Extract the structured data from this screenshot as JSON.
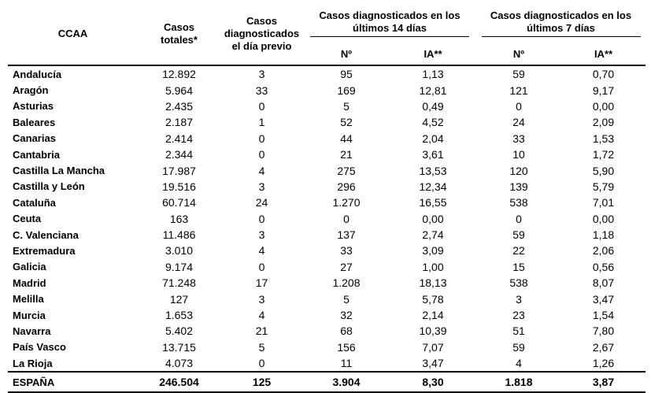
{
  "headers": {
    "ccaa": "CCAA",
    "casos_totales": "Casos totales*",
    "casos_dia_previo": "Casos diagnosticados el día previo",
    "ultimos_14": "Casos diagnosticados en los últimos 14 días",
    "ultimos_7": "Casos diagnosticados en los últimos 7 días",
    "n": "Nº",
    "ia": "IA**"
  },
  "rows": [
    {
      "ccaa": "Andalucía",
      "total": "12.892",
      "previo": "3",
      "n14": "95",
      "ia14": "1,13",
      "n7": "59",
      "ia7": "0,70"
    },
    {
      "ccaa": "Aragón",
      "total": "5.964",
      "previo": "33",
      "n14": "169",
      "ia14": "12,81",
      "n7": "121",
      "ia7": "9,17"
    },
    {
      "ccaa": "Asturias",
      "total": "2.435",
      "previo": "0",
      "n14": "5",
      "ia14": "0,49",
      "n7": "0",
      "ia7": "0,00"
    },
    {
      "ccaa": "Baleares",
      "total": "2.187",
      "previo": "1",
      "n14": "52",
      "ia14": "4,52",
      "n7": "24",
      "ia7": "2,09"
    },
    {
      "ccaa": "Canarias",
      "total": "2.414",
      "previo": "0",
      "n14": "44",
      "ia14": "2,04",
      "n7": "33",
      "ia7": "1,53"
    },
    {
      "ccaa": "Cantabria",
      "total": "2.344",
      "previo": "0",
      "n14": "21",
      "ia14": "3,61",
      "n7": "10",
      "ia7": "1,72"
    },
    {
      "ccaa": "Castilla La Mancha",
      "total": "17.987",
      "previo": "4",
      "n14": "275",
      "ia14": "13,53",
      "n7": "120",
      "ia7": "5,90"
    },
    {
      "ccaa": "Castilla y León",
      "total": "19.516",
      "previo": "3",
      "n14": "296",
      "ia14": "12,34",
      "n7": "139",
      "ia7": "5,79"
    },
    {
      "ccaa": "Cataluña",
      "total": "60.714",
      "previo": "24",
      "n14": "1.270",
      "ia14": "16,55",
      "n7": "538",
      "ia7": "7,01"
    },
    {
      "ccaa": "Ceuta",
      "total": "163",
      "previo": "0",
      "n14": "0",
      "ia14": "0,00",
      "n7": "0",
      "ia7": "0,00"
    },
    {
      "ccaa": "C. Valenciana",
      "total": "11.486",
      "previo": "3",
      "n14": "137",
      "ia14": "2,74",
      "n7": "59",
      "ia7": "1,18"
    },
    {
      "ccaa": "Extremadura",
      "total": "3.010",
      "previo": "4",
      "n14": "33",
      "ia14": "3,09",
      "n7": "22",
      "ia7": "2,06"
    },
    {
      "ccaa": "Galicia",
      "total": "9.174",
      "previo": "0",
      "n14": "27",
      "ia14": "1,00",
      "n7": "15",
      "ia7": "0,56"
    },
    {
      "ccaa": "Madrid",
      "total": "71.248",
      "previo": "17",
      "n14": "1.208",
      "ia14": "18,13",
      "n7": "538",
      "ia7": "8,07"
    },
    {
      "ccaa": "Melilla",
      "total": "127",
      "previo": "3",
      "n14": "5",
      "ia14": "5,78",
      "n7": "3",
      "ia7": "3,47"
    },
    {
      "ccaa": "Murcia",
      "total": "1.653",
      "previo": "4",
      "n14": "32",
      "ia14": "2,14",
      "n7": "23",
      "ia7": "1,54"
    },
    {
      "ccaa": "Navarra",
      "total": "5.402",
      "previo": "21",
      "n14": "68",
      "ia14": "10,39",
      "n7": "51",
      "ia7": "7,80"
    },
    {
      "ccaa": "País Vasco",
      "total": "13.715",
      "previo": "5",
      "n14": "156",
      "ia14": "7,07",
      "n7": "59",
      "ia7": "2,67"
    },
    {
      "ccaa": "La Rioja",
      "total": "4.073",
      "previo": "0",
      "n14": "11",
      "ia14": "3,47",
      "n7": "4",
      "ia7": "1,26"
    }
  ],
  "total": {
    "ccaa": "ESPAÑA",
    "total": "246.504",
    "previo": "125",
    "n14": "3.904",
    "ia14": "8,30",
    "n7": "1.818",
    "ia7": "3,87"
  }
}
